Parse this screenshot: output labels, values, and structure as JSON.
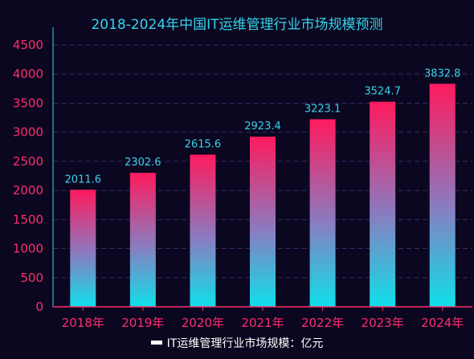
{
  "colors": {
    "background": "#0b0720",
    "title": "#37d3ec",
    "axis_labels": "#ff2d6f",
    "data_labels": "#37d3ec",
    "bar_top": "#ff1a5e",
    "bar_bottom": "#0fe0ea",
    "gridline": "#3a2a63",
    "axis_line": "#ff2d6f",
    "y_axis_line": "#37d3ec"
  },
  "chart_data": {
    "type": "bar",
    "title": "2018-2024年中国IT运维管理行业市场规模预测",
    "categories": [
      "2018年",
      "2019年",
      "2020年",
      "2021年",
      "2022年",
      "2023年",
      "2024年"
    ],
    "series": [
      {
        "name": "IT运维管理行业市场规模：亿元",
        "values": [
          2011.6,
          2302.6,
          2615.6,
          2923.4,
          3223.1,
          3524.7,
          3832.8
        ],
        "labels": [
          "2011.6",
          "2302.6",
          "2615.6",
          "2923.4",
          "3223.1",
          "3524.7",
          "3832.8"
        ]
      }
    ],
    "ylim": [
      0,
      4500
    ],
    "yticks": [
      0,
      500,
      1000,
      1500,
      2000,
      2500,
      3000,
      3500,
      4000,
      4500
    ],
    "ytick_labels": [
      "0",
      "500",
      "1000",
      "1500",
      "2000",
      "2500",
      "3000",
      "3500",
      "4000",
      "4500"
    ],
    "grid": true,
    "legend_position": "bottom-center"
  }
}
